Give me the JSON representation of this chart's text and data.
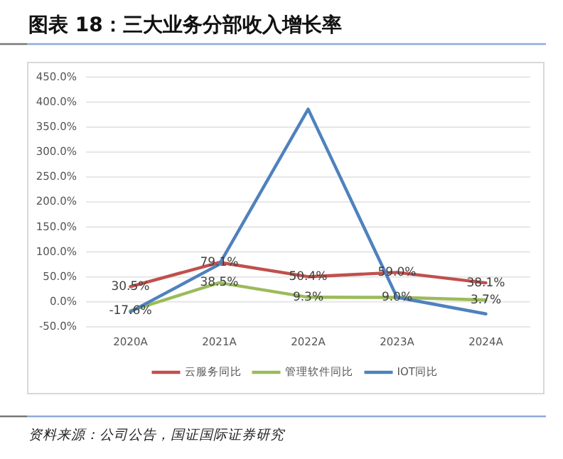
{
  "chart_data": {
    "type": "line",
    "title": "图表 18：三大业务分部收入增长率",
    "annotations": [
      "资料来源：公司公告，国证国际证券研究"
    ],
    "categories": [
      "2020A",
      "2021A",
      "2022A",
      "2023A",
      "2024A"
    ],
    "ylim": [
      -50,
      450
    ],
    "yticks": [
      {
        "value": -50,
        "label": "-50.0%"
      },
      {
        "value": 0,
        "label": "0.0%"
      },
      {
        "value": 50,
        "label": "50.0%"
      },
      {
        "value": 100,
        "label": "100.0%"
      },
      {
        "value": 150,
        "label": "150.0%"
      },
      {
        "value": 200,
        "label": "200.0%"
      },
      {
        "value": 250,
        "label": "250.0%"
      },
      {
        "value": 300,
        "label": "300.0%"
      },
      {
        "value": 350,
        "label": "350.0%"
      },
      {
        "value": 400,
        "label": "400.0%"
      },
      {
        "value": 450,
        "label": "450.0%"
      }
    ],
    "grid": "y",
    "legend": "bottom",
    "line_style": "solid",
    "series": [
      {
        "name": "云服务同比",
        "color": "#c0504d",
        "values": [
          30.5,
          79.1,
          50.4,
          59.0,
          38.1
        ],
        "value_labels": [
          "30.5%",
          "79.1%",
          "50.4%",
          "59.0%",
          "38.1%"
        ]
      },
      {
        "name": "管理软件同比",
        "color": "#9bbb59",
        "values": [
          -17.6,
          38.5,
          9.3,
          9.0,
          3.7
        ],
        "value_labels": [
          "-17.6%",
          "38.5%",
          "9.3%",
          "9.0%",
          "3.7%"
        ]
      },
      {
        "name": "IOT同比",
        "color": "#4f81bd",
        "values": [
          -20,
          75,
          386,
          9,
          -24
        ]
      }
    ]
  }
}
